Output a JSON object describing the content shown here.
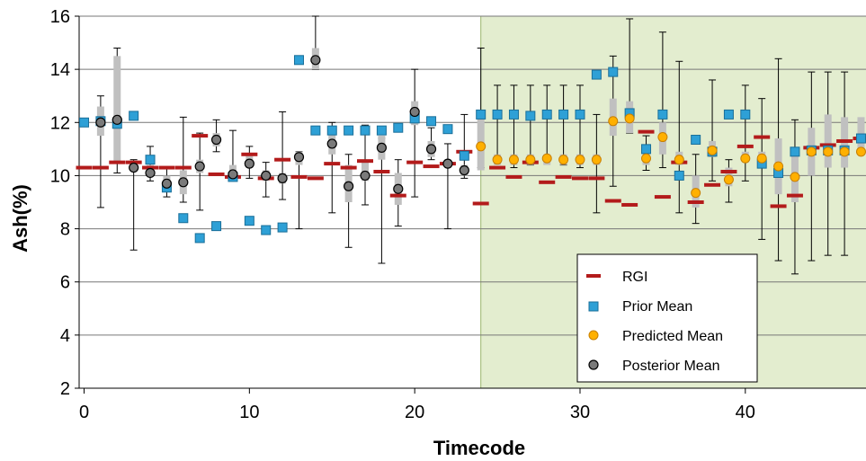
{
  "chart_data": {
    "type": "scatter",
    "xlabel": "Timecode",
    "ylabel": "Ash(%)",
    "xlim": [
      -0.3,
      47.3
    ],
    "ylim": [
      2,
      16
    ],
    "x_ticks": [
      0,
      10,
      20,
      30,
      40
    ],
    "y_ticks": [
      2,
      4,
      6,
      8,
      10,
      12,
      14,
      16
    ],
    "grid": "horizontal",
    "shaded_region": {
      "x_start": 24,
      "x_end": 47.3,
      "color": "#e3edcf"
    },
    "colors": {
      "rgi": "#b31b1b",
      "prior": "#2ea0d6",
      "predicted": "#ffb000",
      "posterior": "#7a7a7a",
      "box": "#c0c0c0",
      "whisker": "#000000",
      "grid": "#777777"
    },
    "legend": {
      "position": "lower-right",
      "entries": [
        {
          "key": "rgi",
          "label": "RGI"
        },
        {
          "key": "prior",
          "label": "Prior Mean"
        },
        {
          "key": "predicted",
          "label": "Predicted Mean"
        },
        {
          "key": "posterior",
          "label": "Posterior Mean"
        }
      ]
    },
    "series": {
      "rgi": [
        [
          0,
          10.3
        ],
        [
          1,
          10.3
        ],
        [
          2,
          10.5
        ],
        [
          3,
          10.5
        ],
        [
          4,
          10.3
        ],
        [
          5,
          10.3
        ],
        [
          6,
          10.3
        ],
        [
          7,
          11.5
        ],
        [
          8,
          10.05
        ],
        [
          9,
          9.95
        ],
        [
          10,
          10.8
        ],
        [
          11,
          9.9
        ],
        [
          12,
          10.6
        ],
        [
          13,
          9.95
        ],
        [
          14,
          9.9
        ],
        [
          15,
          10.45
        ],
        [
          16,
          10.3
        ],
        [
          17,
          10.55
        ],
        [
          18,
          10.15
        ],
        [
          19,
          9.25
        ],
        [
          20,
          10.5
        ],
        [
          21,
          10.35
        ],
        [
          22,
          10.45
        ],
        [
          23,
          10.9
        ],
        [
          24,
          8.95
        ],
        [
          25,
          10.3
        ],
        [
          26,
          9.95
        ],
        [
          27,
          10.5
        ],
        [
          28,
          9.75
        ],
        [
          29,
          9.95
        ],
        [
          30,
          9.9
        ],
        [
          31,
          9.9
        ],
        [
          32,
          9.05
        ],
        [
          33,
          8.9
        ],
        [
          34,
          11.65
        ],
        [
          35,
          9.2
        ],
        [
          36,
          10.5
        ],
        [
          37,
          9.0
        ],
        [
          38,
          9.65
        ],
        [
          39,
          10.15
        ],
        [
          40,
          11.1
        ],
        [
          41,
          11.45
        ],
        [
          42,
          8.85
        ],
        [
          43,
          9.25
        ],
        [
          44,
          11.05
        ],
        [
          45,
          11.15
        ],
        [
          46,
          11.3
        ],
        [
          47,
          11.4
        ]
      ],
      "prior": [
        [
          0,
          12.0
        ],
        [
          1,
          12.05
        ],
        [
          2,
          11.95
        ],
        [
          3,
          12.25
        ],
        [
          4,
          10.6
        ],
        [
          5,
          9.55
        ],
        [
          6,
          8.4
        ],
        [
          7,
          7.65
        ],
        [
          8,
          8.1
        ],
        [
          9,
          9.95
        ],
        [
          10,
          8.3
        ],
        [
          11,
          7.95
        ],
        [
          12,
          8.05
        ],
        [
          13,
          14.35
        ],
        [
          14,
          11.7
        ],
        [
          15,
          11.7
        ],
        [
          16,
          11.7
        ],
        [
          17,
          11.7
        ],
        [
          18,
          11.7
        ],
        [
          19,
          11.8
        ],
        [
          20,
          12.15
        ],
        [
          21,
          12.05
        ],
        [
          22,
          11.75
        ],
        [
          23,
          10.75
        ],
        [
          24,
          12.3
        ],
        [
          25,
          12.3
        ],
        [
          26,
          12.3
        ],
        [
          27,
          12.25
        ],
        [
          28,
          12.3
        ],
        [
          29,
          12.3
        ],
        [
          30,
          12.3
        ],
        [
          31,
          13.8
        ],
        [
          32,
          13.9
        ],
        [
          33,
          12.35
        ],
        [
          34,
          11.0
        ],
        [
          35,
          12.3
        ],
        [
          36,
          10.0
        ],
        [
          37,
          11.35
        ],
        [
          38,
          10.9
        ],
        [
          39,
          12.3
        ],
        [
          40,
          12.3
        ],
        [
          41,
          10.45
        ],
        [
          42,
          10.1
        ],
        [
          43,
          10.9
        ],
        [
          44,
          10.95
        ],
        [
          45,
          10.95
        ],
        [
          46,
          10.95
        ],
        [
          47,
          11.4
        ]
      ],
      "predicted": [
        [
          24,
          11.1
        ],
        [
          25,
          10.6
        ],
        [
          26,
          10.6
        ],
        [
          27,
          10.6
        ],
        [
          28,
          10.65
        ],
        [
          29,
          10.6
        ],
        [
          30,
          10.6
        ],
        [
          31,
          10.6
        ],
        [
          32,
          12.05
        ],
        [
          33,
          12.15
        ],
        [
          34,
          10.65
        ],
        [
          35,
          11.45
        ],
        [
          36,
          10.6
        ],
        [
          37,
          9.35
        ],
        [
          38,
          10.95
        ],
        [
          39,
          9.85
        ],
        [
          40,
          10.65
        ],
        [
          41,
          10.65
        ],
        [
          42,
          10.35
        ],
        [
          43,
          9.95
        ],
        [
          44,
          10.9
        ],
        [
          45,
          10.9
        ],
        [
          46,
          10.9
        ],
        [
          47,
          10.9
        ]
      ],
      "posterior": [
        [
          1,
          12.0
        ],
        [
          2,
          12.1
        ],
        [
          3,
          10.3
        ],
        [
          4,
          10.1
        ],
        [
          5,
          9.7
        ],
        [
          6,
          9.75
        ],
        [
          7,
          10.35
        ],
        [
          8,
          11.35
        ],
        [
          9,
          10.05
        ],
        [
          10,
          10.45
        ],
        [
          11,
          10.0
        ],
        [
          12,
          9.9
        ],
        [
          13,
          10.7
        ],
        [
          14,
          14.35
        ],
        [
          15,
          11.2
        ],
        [
          16,
          9.6
        ],
        [
          17,
          10.0
        ],
        [
          18,
          11.05
        ],
        [
          19,
          9.5
        ],
        [
          20,
          12.4
        ],
        [
          21,
          11.0
        ],
        [
          22,
          10.45
        ],
        [
          23,
          10.2
        ]
      ]
    },
    "whiskers": [
      [
        1,
        8.8,
        13.0
      ],
      [
        2,
        10.1,
        14.8
      ],
      [
        3,
        7.2,
        10.6
      ],
      [
        4,
        9.8,
        11.1
      ],
      [
        5,
        9.2,
        10.3
      ],
      [
        6,
        9.0,
        12.2
      ],
      [
        7,
        8.7,
        11.6
      ],
      [
        8,
        10.9,
        12.1
      ],
      [
        9,
        9.9,
        11.7
      ],
      [
        10,
        9.9,
        11.1
      ],
      [
        11,
        9.2,
        10.5
      ],
      [
        12,
        9.1,
        12.4
      ],
      [
        13,
        8.0,
        10.9
      ],
      [
        14,
        14.0,
        16.0
      ],
      [
        15,
        8.6,
        12.0
      ],
      [
        16,
        7.3,
        10.8
      ],
      [
        17,
        8.9,
        11.9
      ],
      [
        18,
        6.7,
        11.4
      ],
      [
        19,
        8.1,
        10.6
      ],
      [
        20,
        9.2,
        14.0
      ],
      [
        21,
        10.6,
        11.8
      ],
      [
        22,
        8.0,
        11.2
      ],
      [
        23,
        9.9,
        12.3
      ],
      [
        24,
        10.3,
        14.8
      ],
      [
        25,
        10.5,
        13.4
      ],
      [
        26,
        10.3,
        13.4
      ],
      [
        27,
        10.4,
        13.4
      ],
      [
        28,
        10.6,
        13.4
      ],
      [
        29,
        10.4,
        13.4
      ],
      [
        30,
        10.3,
        13.4
      ],
      [
        31,
        8.6,
        12.3
      ],
      [
        32,
        9.6,
        14.5
      ],
      [
        33,
        11.6,
        15.9
      ],
      [
        34,
        10.2,
        11.5
      ],
      [
        35,
        10.3,
        15.4
      ],
      [
        36,
        8.6,
        14.3
      ],
      [
        37,
        8.2,
        10.8
      ],
      [
        38,
        9.8,
        13.6
      ],
      [
        39,
        9.0,
        10.6
      ],
      [
        40,
        9.8,
        13.4
      ],
      [
        41,
        7.6,
        12.9
      ],
      [
        42,
        6.8,
        14.4
      ],
      [
        43,
        6.3,
        12.1
      ],
      [
        44,
        6.8,
        13.9
      ],
      [
        45,
        7.0,
        13.9
      ],
      [
        46,
        7.0,
        13.9
      ],
      [
        47,
        10.9,
        12.0
      ]
    ],
    "boxes": [
      [
        1,
        11.5,
        12.6
      ],
      [
        2,
        10.5,
        14.5
      ],
      [
        4,
        10.1,
        10.4
      ],
      [
        5,
        9.5,
        10.0
      ],
      [
        6,
        9.3,
        10.2
      ],
      [
        7,
        10.1,
        10.6
      ],
      [
        8,
        11.1,
        11.6
      ],
      [
        9,
        9.9,
        10.4
      ],
      [
        10,
        10.3,
        10.8
      ],
      [
        11,
        9.8,
        10.2
      ],
      [
        12,
        9.7,
        10.1
      ],
      [
        13,
        10.4,
        10.9
      ],
      [
        14,
        14.0,
        14.8
      ],
      [
        15,
        10.8,
        11.6
      ],
      [
        16,
        9.0,
        10.4
      ],
      [
        17,
        9.8,
        10.5
      ],
      [
        18,
        10.6,
        11.5
      ],
      [
        19,
        8.9,
        10.1
      ],
      [
        20,
        11.9,
        12.8
      ],
      [
        21,
        10.7,
        11.3
      ],
      [
        22,
        10.3,
        10.6
      ],
      [
        23,
        10.0,
        10.4
      ],
      [
        24,
        10.2,
        12.3
      ],
      [
        25,
        10.4,
        10.8
      ],
      [
        26,
        10.4,
        10.8
      ],
      [
        27,
        10.4,
        10.8
      ],
      [
        28,
        10.4,
        10.8
      ],
      [
        29,
        10.4,
        10.8
      ],
      [
        30,
        10.4,
        10.8
      ],
      [
        31,
        10.4,
        10.8
      ],
      [
        32,
        11.5,
        12.9
      ],
      [
        33,
        11.6,
        12.8
      ],
      [
        34,
        10.4,
        11.0
      ],
      [
        35,
        10.8,
        12.0
      ],
      [
        36,
        10.4,
        10.9
      ],
      [
        37,
        8.8,
        10.0
      ],
      [
        38,
        10.7,
        11.3
      ],
      [
        39,
        9.6,
        10.3
      ],
      [
        40,
        10.5,
        10.9
      ],
      [
        41,
        10.4,
        10.9
      ],
      [
        42,
        9.3,
        11.4
      ],
      [
        43,
        9.0,
        11.0
      ],
      [
        44,
        10.0,
        11.8
      ],
      [
        45,
        10.3,
        12.3
      ],
      [
        46,
        10.3,
        12.2
      ],
      [
        47,
        11.0,
        12.2
      ]
    ]
  }
}
